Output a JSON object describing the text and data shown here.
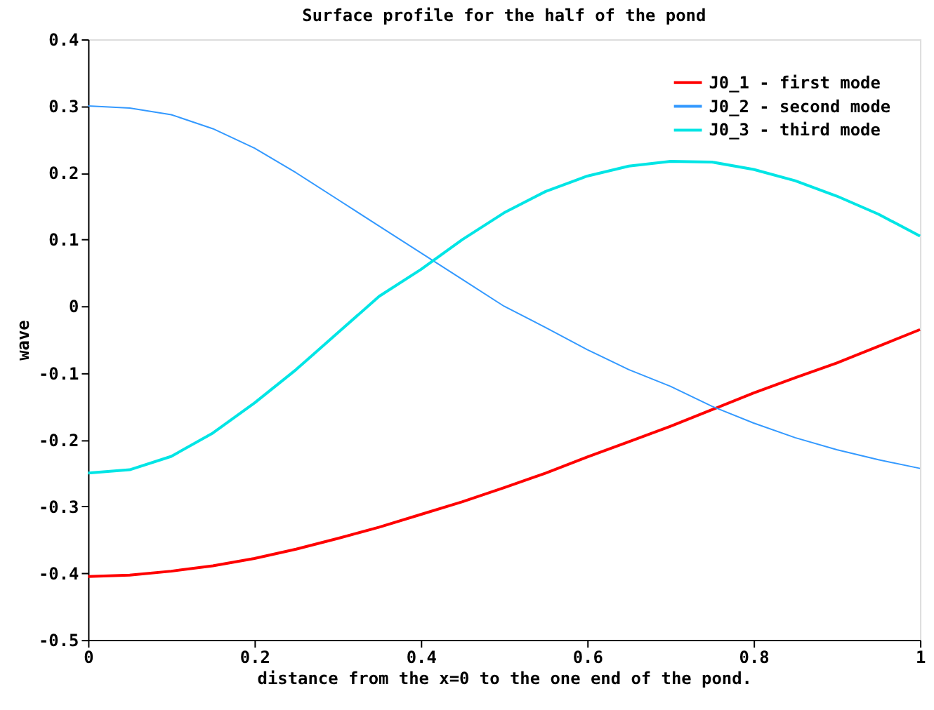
{
  "chart_data": {
    "type": "line",
    "title": "Surface profile for the half of the pond",
    "xlabel": "distance from the x=0 to the one end of the pond.",
    "ylabel": "wave",
    "x": [
      0,
      0.05,
      0.1,
      0.15,
      0.2,
      0.25,
      0.3,
      0.35,
      0.4,
      0.45,
      0.5,
      0.55,
      0.6,
      0.65,
      0.7,
      0.75,
      0.8,
      0.85,
      0.9,
      0.95,
      1
    ],
    "series": [
      {
        "name": "J0_1 - first mode",
        "color": "#ff0000",
        "values": [
          -0.405,
          -0.403,
          -0.397,
          -0.389,
          -0.378,
          -0.364,
          -0.348,
          -0.331,
          -0.312,
          -0.293,
          -0.272,
          -0.25,
          -0.226,
          -0.203,
          -0.18,
          -0.155,
          -0.13,
          -0.107,
          -0.085,
          -0.06,
          -0.035
        ]
      },
      {
        "name": "J0_2 - second mode",
        "color": "#3399ff",
        "values": [
          0.3,
          0.297,
          0.287,
          0.266,
          0.237,
          0.2,
          0.16,
          0.12,
          0.08,
          0.04,
          0.0,
          -0.032,
          -0.065,
          -0.095,
          -0.12,
          -0.15,
          -0.175,
          -0.197,
          -0.215,
          -0.23,
          -0.243
        ]
      },
      {
        "name": "J0_3 - third mode",
        "color": "#00e5e5",
        "values": [
          -0.25,
          -0.245,
          -0.225,
          -0.19,
          -0.145,
          -0.095,
          -0.04,
          0.015,
          0.055,
          0.1,
          0.14,
          0.172,
          0.195,
          0.21,
          0.217,
          0.216,
          0.205,
          0.188,
          0.165,
          0.138,
          0.105
        ]
      }
    ],
    "xlim": [
      0,
      1
    ],
    "xticks": [
      0,
      {
        "value": 0.2,
        "label": "0.2"
      },
      {
        "value": 0.4,
        "label": "0.4"
      },
      {
        "value": 0.6,
        "label": "0.6"
      },
      {
        "value": 0.8,
        "label": "0.8"
      },
      1
    ],
    "ylim": [
      -0.5,
      0.4
    ],
    "yticks": [
      -0.5,
      -0.4,
      -0.3,
      -0.2,
      -0.1,
      0,
      0.1,
      0.2,
      0.3,
      0.4
    ],
    "legend": "top right",
    "grid": false,
    "marker": "none",
    "line_style": "solid"
  }
}
